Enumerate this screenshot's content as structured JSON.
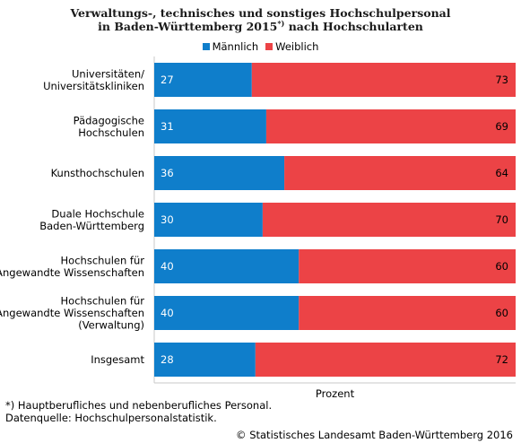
{
  "title": {
    "line1": "Verwaltungs-, technisches und sonstiges Hochschulpersonal",
    "line2_a": "in Baden-Württemberg 2015",
    "line2_sup": "*)",
    "line2_b": " nach Hochschularten"
  },
  "colors": {
    "maennlich": "#0f7ecb",
    "weiblich": "#ec4346",
    "grid": "#c8c8c8"
  },
  "chart_data": {
    "type": "bar",
    "orientation": "horizontal",
    "stacked": true,
    "percent": true,
    "xlim": [
      0,
      100
    ],
    "xlabel": "Prozent",
    "legend_position": "top",
    "categories": [
      "Universitäten/\nUniversitätskliniken",
      "Pädagogische\nHochschulen",
      "Kunsthochschulen",
      "Duale Hochschule\nBaden-Württemberg",
      "Hochschulen für\nAngewandte Wissenschaften",
      "Hochschulen für\nAngewandte Wissenschaften\n(Verwaltung)",
      "Insgesamt"
    ],
    "series": [
      {
        "name": "Männlich",
        "values": [
          27,
          31,
          36,
          30,
          40,
          40,
          28
        ]
      },
      {
        "name": "Weiblich",
        "values": [
          73,
          69,
          64,
          70,
          60,
          60,
          72
        ]
      }
    ]
  },
  "footnote": {
    "line1": "*) Hauptberufliches und nebenberufliches Personal.",
    "line2": "Datenquelle: Hochschulpersonalstatistik."
  },
  "copyright": "© Statistisches Landesamt Baden-Württemberg 2016"
}
